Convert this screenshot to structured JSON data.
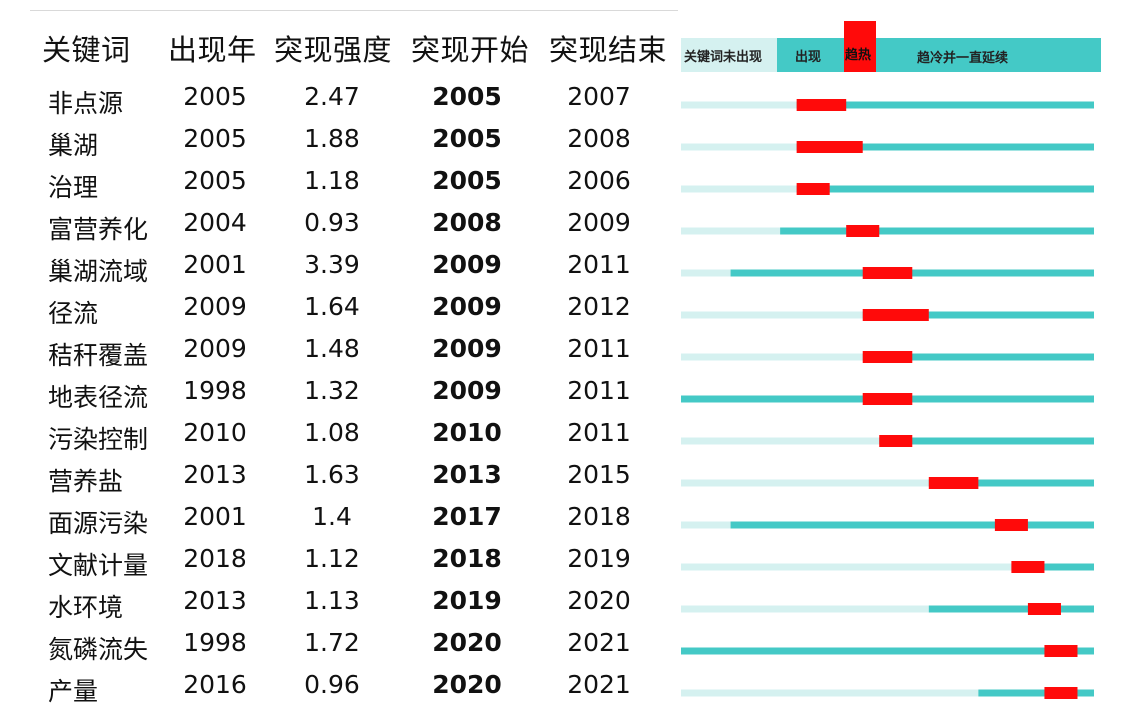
{
  "headers": {
    "keyword": "关键词",
    "appear_year": "出现年",
    "strength": "突现强度",
    "begin": "突现开始",
    "end": "突现结束"
  },
  "legend": {
    "not_appeared": "关键词未出现",
    "appeared": "出现",
    "hot": "趋热",
    "cooling": "趋冷并一直延续"
  },
  "colors": {
    "not_appeared": "#d5f1f0",
    "appeared": "#44c9c6",
    "burst": "#ff0a0a"
  },
  "rows": [
    {
      "keyword": "非点源",
      "year": "2005",
      "strength": "2.47",
      "begin": "2005",
      "end": "2007"
    },
    {
      "keyword": "巢湖",
      "year": "2005",
      "strength": "1.88",
      "begin": "2005",
      "end": "2008"
    },
    {
      "keyword": "治理",
      "year": "2005",
      "strength": "1.18",
      "begin": "2005",
      "end": "2006"
    },
    {
      "keyword": "富营养化",
      "year": "2004",
      "strength": "0.93",
      "begin": "2008",
      "end": "2009"
    },
    {
      "keyword": "巢湖流域",
      "year": "2001",
      "strength": "3.39",
      "begin": "2009",
      "end": "2011"
    },
    {
      "keyword": "径流",
      "year": "2009",
      "strength": "1.64",
      "begin": "2009",
      "end": "2012"
    },
    {
      "keyword": "秸秆覆盖",
      "year": "2009",
      "strength": "1.48",
      "begin": "2009",
      "end": "2011"
    },
    {
      "keyword": "地表径流",
      "year": "1998",
      "strength": "1.32",
      "begin": "2009",
      "end": "2011"
    },
    {
      "keyword": "污染控制",
      "year": "2010",
      "strength": "1.08",
      "begin": "2010",
      "end": "2011"
    },
    {
      "keyword": "营养盐",
      "year": "2013",
      "strength": "1.63",
      "begin": "2013",
      "end": "2015"
    },
    {
      "keyword": "面源污染",
      "year": "2001",
      "strength": "1.4",
      "begin": "2017",
      "end": "2018"
    },
    {
      "keyword": "文献计量",
      "year": "2018",
      "strength": "1.12",
      "begin": "2018",
      "end": "2019"
    },
    {
      "keyword": "水环境",
      "year": "2013",
      "strength": "1.13",
      "begin": "2019",
      "end": "2020"
    },
    {
      "keyword": "氮磷流失",
      "year": "1998",
      "strength": "1.72",
      "begin": "2020",
      "end": "2021"
    },
    {
      "keyword": "产量",
      "year": "2016",
      "strength": "0.96",
      "begin": "2020",
      "end": "2021"
    }
  ],
  "chart_data": {
    "type": "table",
    "time_range": [
      1998,
      2023
    ],
    "columns": [
      "关键词",
      "出现年",
      "突现强度",
      "突现开始",
      "突现结束"
    ],
    "series": [
      {
        "keyword": "非点源",
        "appear": 2005,
        "strength": 2.47,
        "begin": 2005,
        "end": 2007
      },
      {
        "keyword": "巢湖",
        "appear": 2005,
        "strength": 1.88,
        "begin": 2005,
        "end": 2008
      },
      {
        "keyword": "治理",
        "appear": 2005,
        "strength": 1.18,
        "begin": 2005,
        "end": 2006
      },
      {
        "keyword": "富营养化",
        "appear": 2004,
        "strength": 0.93,
        "begin": 2008,
        "end": 2009
      },
      {
        "keyword": "巢湖流域",
        "appear": 2001,
        "strength": 3.39,
        "begin": 2009,
        "end": 2011
      },
      {
        "keyword": "径流",
        "appear": 2009,
        "strength": 1.64,
        "begin": 2009,
        "end": 2012
      },
      {
        "keyword": "秸秆覆盖",
        "appear": 2009,
        "strength": 1.48,
        "begin": 2009,
        "end": 2011
      },
      {
        "keyword": "地表径流",
        "appear": 1998,
        "strength": 1.32,
        "begin": 2009,
        "end": 2011
      },
      {
        "keyword": "污染控制",
        "appear": 2010,
        "strength": 1.08,
        "begin": 2010,
        "end": 2011
      },
      {
        "keyword": "营养盐",
        "appear": 2013,
        "strength": 1.63,
        "begin": 2013,
        "end": 2015
      },
      {
        "keyword": "面源污染",
        "appear": 2001,
        "strength": 1.4,
        "begin": 2017,
        "end": 2018
      },
      {
        "keyword": "文献计量",
        "appear": 2018,
        "strength": 1.12,
        "begin": 2018,
        "end": 2019
      },
      {
        "keyword": "水环境",
        "appear": 2013,
        "strength": 1.13,
        "begin": 2019,
        "end": 2020
      },
      {
        "keyword": "氮磷流失",
        "appear": 1998,
        "strength": 1.72,
        "begin": 2020,
        "end": 2021
      },
      {
        "keyword": "产量",
        "appear": 2016,
        "strength": 0.96,
        "begin": 2020,
        "end": 2021
      }
    ]
  }
}
